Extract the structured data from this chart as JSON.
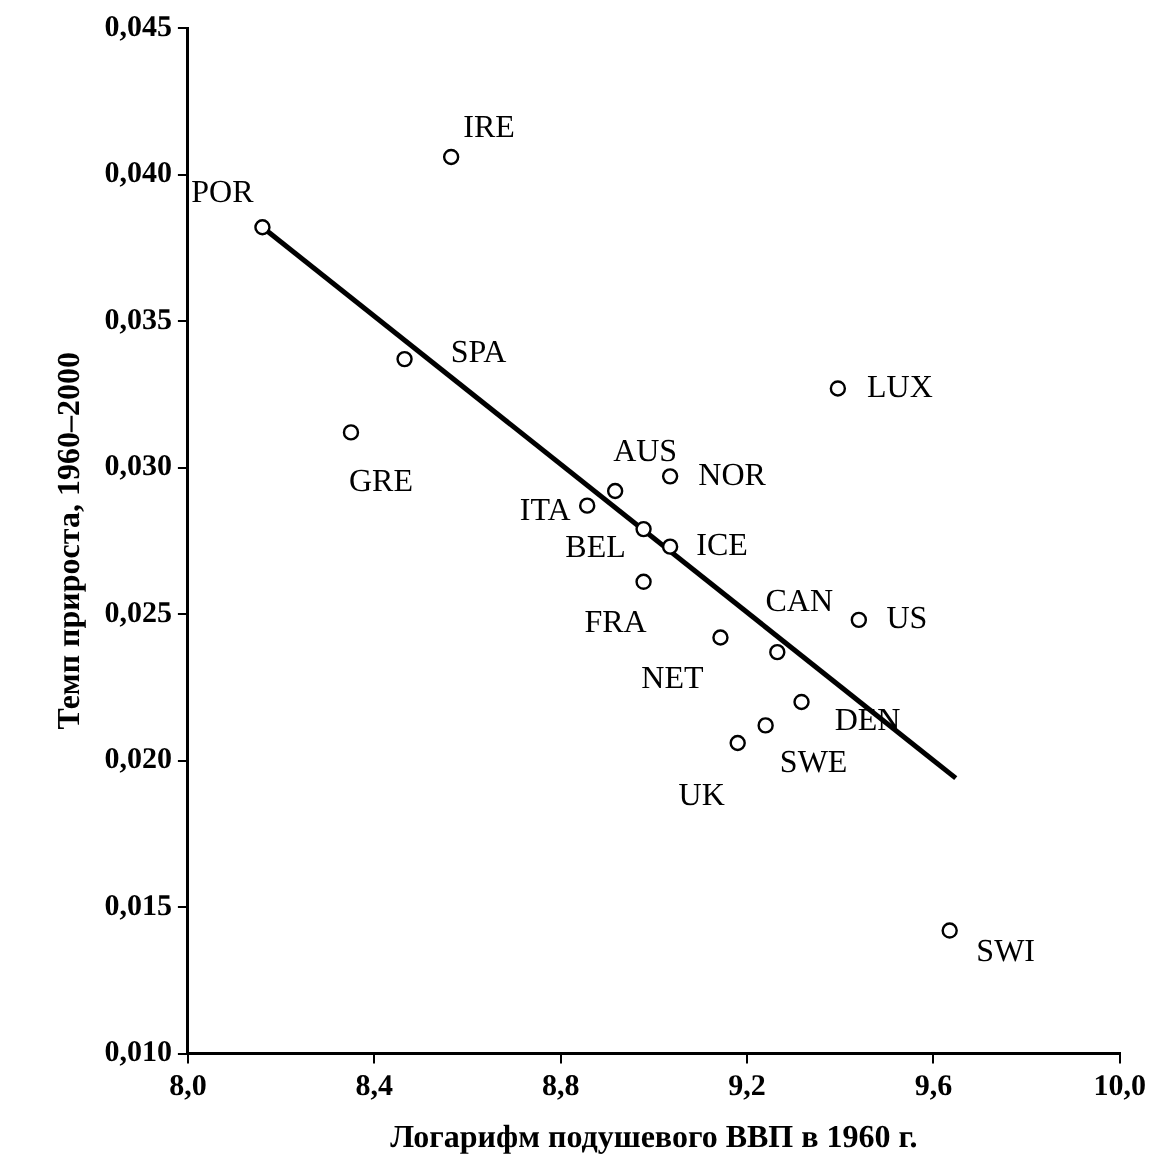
{
  "chart_data": {
    "type": "scatter",
    "xlabel": "Логарифм подушевого ВВП в 1960 г.",
    "ylabel": "Темп прироста, 1960–2000",
    "xlim": [
      8.0,
      10.0
    ],
    "xticks": [
      {
        "value": 8.0,
        "label": "8,0"
      },
      {
        "value": 8.4,
        "label": "8,4"
      },
      {
        "value": 8.8,
        "label": "8,8"
      },
      {
        "value": 9.2,
        "label": "9,2"
      },
      {
        "value": 9.6,
        "label": "9,6"
      },
      {
        "value": 10.0,
        "label": "10,0"
      }
    ],
    "ylim": [
      0.01,
      0.045
    ],
    "yticks": [
      {
        "value": 0.01,
        "label": "0,010"
      },
      {
        "value": 0.015,
        "label": "0,015"
      },
      {
        "value": 0.02,
        "label": "0,020"
      },
      {
        "value": 0.025,
        "label": "0,025"
      },
      {
        "value": 0.03,
        "label": "0,030"
      },
      {
        "value": 0.035,
        "label": "0,035"
      },
      {
        "value": 0.04,
        "label": "0,040"
      },
      {
        "value": 0.045,
        "label": "0,045"
      }
    ],
    "grid": false,
    "legend": false,
    "marker": "circle",
    "series": [
      {
        "color": "#000000",
        "x": [
          8.16,
          8.565,
          8.465,
          8.35,
          8.917,
          9.035,
          8.857,
          8.978,
          9.035,
          8.978,
          9.143,
          9.265,
          9.44,
          9.317,
          9.24,
          9.18,
          9.395,
          9.635
        ],
        "values": [
          0.0382,
          0.0406,
          0.0337,
          0.0312,
          0.0292,
          0.0297,
          0.0287,
          0.0279,
          0.0273,
          0.0261,
          0.0242,
          0.0237,
          0.0248,
          0.022,
          0.0212,
          0.0206,
          0.0327,
          0.0142
        ]
      },
      {
        "type": "line",
        "color": "#000000",
        "line_style": "solid",
        "marker": "none",
        "x": [
          8.16,
          9.648
        ],
        "values": [
          0.0382,
          0.0194
        ]
      }
    ],
    "annotations": [
      {
        "text": "POR",
        "x": 8.16,
        "y": 0.0382
      },
      {
        "text": "IRE",
        "x": 8.565,
        "y": 0.0406
      },
      {
        "text": "SPA",
        "x": 8.465,
        "y": 0.0337
      },
      {
        "text": "GRE",
        "x": 8.35,
        "y": 0.0312
      },
      {
        "text": "AUS",
        "x": 8.917,
        "y": 0.0292
      },
      {
        "text": "NOR",
        "x": 9.035,
        "y": 0.0297
      },
      {
        "text": "ITA",
        "x": 8.857,
        "y": 0.0287
      },
      {
        "text": "BEL",
        "x": 8.978,
        "y": 0.0279
      },
      {
        "text": "ICE",
        "x": 9.035,
        "y": 0.0273
      },
      {
        "text": "FRA",
        "x": 8.978,
        "y": 0.0261
      },
      {
        "text": "NET",
        "x": 9.143,
        "y": 0.0242
      },
      {
        "text": "CAN",
        "x": 9.265,
        "y": 0.0237
      },
      {
        "text": "US",
        "x": 9.44,
        "y": 0.0248
      },
      {
        "text": "DEN",
        "x": 9.317,
        "y": 0.022
      },
      {
        "text": "SWE",
        "x": 9.24,
        "y": 0.0212
      },
      {
        "text": "UK",
        "x": 9.18,
        "y": 0.0206
      },
      {
        "text": "LUX",
        "x": 9.395,
        "y": 0.0327
      },
      {
        "text": "SWI",
        "x": 9.635,
        "y": 0.0142
      }
    ]
  }
}
